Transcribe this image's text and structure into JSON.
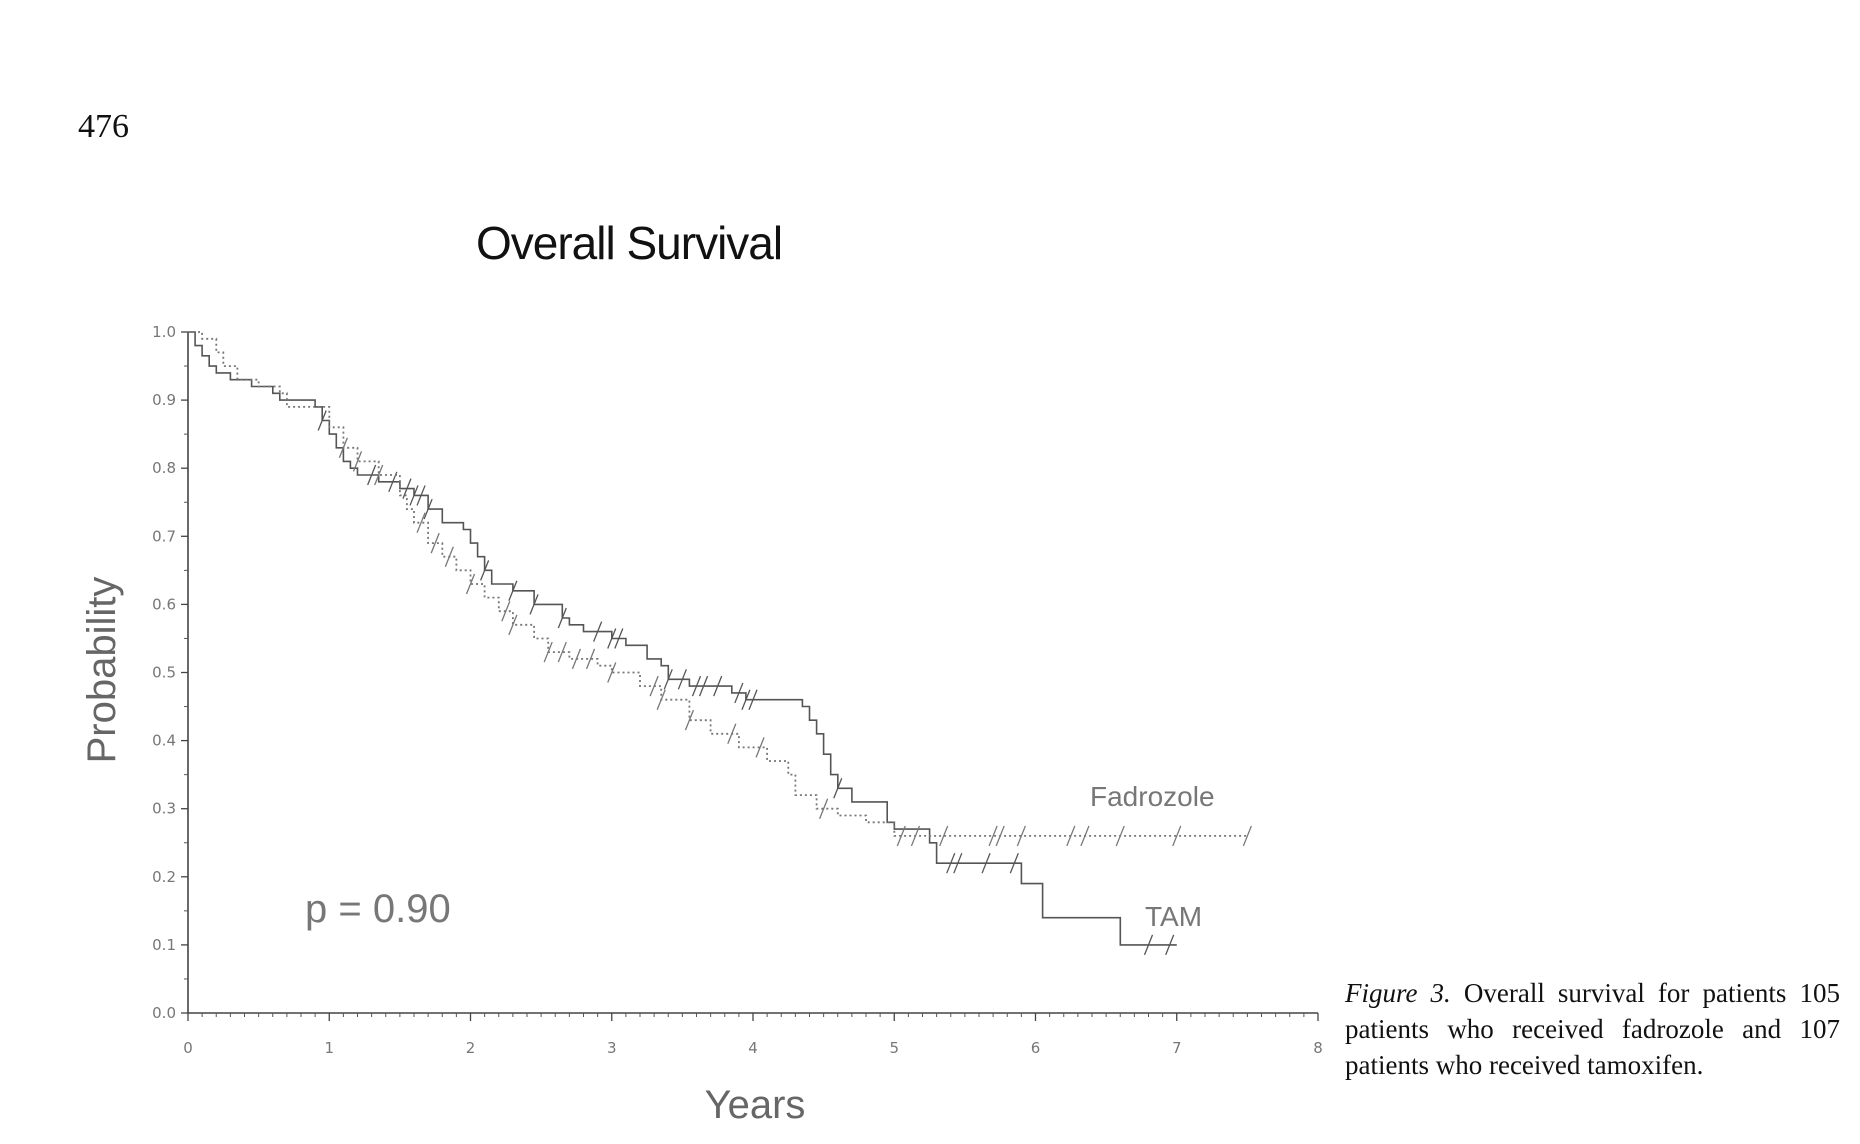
{
  "page": {
    "number": "476"
  },
  "figure": {
    "label": "Figure 3.",
    "caption": "Overall survival for patients 105 patients who received fadrozole and 107 patients who received tamoxifen."
  },
  "chart_data": {
    "type": "line",
    "title": "Overall Survival",
    "xlabel": "Years",
    "ylabel": "Probability",
    "xlim": [
      0,
      8
    ],
    "ylim": [
      0,
      1.0
    ],
    "x_ticks": [
      "0",
      "1",
      "2",
      "3",
      "4",
      "5",
      "6",
      "7",
      "8"
    ],
    "y_ticks": [
      "0.0",
      "0.1",
      "0.2",
      "0.3",
      "0.4",
      "0.5",
      "0.6",
      "0.7",
      "0.8",
      "0.9",
      "1.0"
    ],
    "grid": false,
    "annotations": {
      "pvalue": "p = 0.90"
    },
    "series": [
      {
        "name": "TAM",
        "style": "solid",
        "color": "#555555",
        "step_points": [
          [
            0,
            1.0
          ],
          [
            0.05,
            0.98
          ],
          [
            0.1,
            0.965
          ],
          [
            0.15,
            0.95
          ],
          [
            0.2,
            0.94
          ],
          [
            0.3,
            0.93
          ],
          [
            0.45,
            0.92
          ],
          [
            0.6,
            0.91
          ],
          [
            0.65,
            0.9
          ],
          [
            0.9,
            0.89
          ],
          [
            0.95,
            0.87
          ],
          [
            1.0,
            0.85
          ],
          [
            1.05,
            0.83
          ],
          [
            1.1,
            0.81
          ],
          [
            1.15,
            0.8
          ],
          [
            1.2,
            0.79
          ],
          [
            1.35,
            0.78
          ],
          [
            1.5,
            0.77
          ],
          [
            1.6,
            0.76
          ],
          [
            1.7,
            0.74
          ],
          [
            1.8,
            0.72
          ],
          [
            1.95,
            0.71
          ],
          [
            2.0,
            0.69
          ],
          [
            2.05,
            0.67
          ],
          [
            2.1,
            0.65
          ],
          [
            2.15,
            0.63
          ],
          [
            2.3,
            0.62
          ],
          [
            2.45,
            0.6
          ],
          [
            2.65,
            0.58
          ],
          [
            2.7,
            0.57
          ],
          [
            2.8,
            0.56
          ],
          [
            3.0,
            0.55
          ],
          [
            3.1,
            0.54
          ],
          [
            3.25,
            0.52
          ],
          [
            3.35,
            0.51
          ],
          [
            3.4,
            0.49
          ],
          [
            3.55,
            0.48
          ],
          [
            3.85,
            0.47
          ],
          [
            3.95,
            0.46
          ],
          [
            4.35,
            0.45
          ],
          [
            4.4,
            0.43
          ],
          [
            4.45,
            0.41
          ],
          [
            4.5,
            0.38
          ],
          [
            4.55,
            0.35
          ],
          [
            4.6,
            0.33
          ],
          [
            4.7,
            0.31
          ],
          [
            4.95,
            0.28
          ],
          [
            5.0,
            0.27
          ],
          [
            5.25,
            0.25
          ],
          [
            5.3,
            0.22
          ],
          [
            5.9,
            0.19
          ],
          [
            6.05,
            0.14
          ],
          [
            6.6,
            0.1
          ],
          [
            7.0,
            0.1
          ]
        ],
        "censor_x": [
          0.95,
          1.3,
          1.45,
          1.55,
          1.6,
          1.65,
          1.7,
          2.1,
          2.3,
          2.45,
          2.65,
          2.9,
          3.0,
          3.05,
          3.4,
          3.5,
          3.6,
          3.65,
          3.75,
          3.9,
          3.95,
          4.0,
          4.6,
          5.4,
          5.45,
          5.65,
          5.85,
          6.8,
          6.95
        ]
      },
      {
        "name": "Fadrozole",
        "style": "dotted",
        "color": "#777777",
        "step_points": [
          [
            0,
            1.0
          ],
          [
            0.1,
            0.99
          ],
          [
            0.2,
            0.97
          ],
          [
            0.25,
            0.95
          ],
          [
            0.35,
            0.93
          ],
          [
            0.5,
            0.92
          ],
          [
            0.65,
            0.91
          ],
          [
            0.7,
            0.89
          ],
          [
            0.9,
            0.89
          ],
          [
            1.0,
            0.86
          ],
          [
            1.1,
            0.83
          ],
          [
            1.2,
            0.81
          ],
          [
            1.35,
            0.79
          ],
          [
            1.5,
            0.76
          ],
          [
            1.55,
            0.74
          ],
          [
            1.6,
            0.72
          ],
          [
            1.7,
            0.69
          ],
          [
            1.8,
            0.67
          ],
          [
            1.9,
            0.65
          ],
          [
            2.0,
            0.63
          ],
          [
            2.1,
            0.61
          ],
          [
            2.2,
            0.59
          ],
          [
            2.3,
            0.57
          ],
          [
            2.45,
            0.55
          ],
          [
            2.55,
            0.53
          ],
          [
            2.7,
            0.52
          ],
          [
            2.9,
            0.51
          ],
          [
            3.0,
            0.5
          ],
          [
            3.2,
            0.48
          ],
          [
            3.35,
            0.46
          ],
          [
            3.55,
            0.43
          ],
          [
            3.7,
            0.41
          ],
          [
            3.9,
            0.39
          ],
          [
            4.1,
            0.37
          ],
          [
            4.25,
            0.35
          ],
          [
            4.3,
            0.32
          ],
          [
            4.45,
            0.3
          ],
          [
            4.6,
            0.29
          ],
          [
            4.8,
            0.28
          ],
          [
            5.0,
            0.26
          ],
          [
            7.5,
            0.26
          ]
        ],
        "censor_x": [
          1.1,
          1.2,
          1.35,
          1.65,
          1.75,
          1.85,
          2.0,
          2.25,
          2.3,
          2.55,
          2.65,
          2.75,
          2.85,
          3.0,
          3.3,
          3.35,
          3.55,
          3.85,
          4.05,
          4.5,
          5.05,
          5.15,
          5.35,
          5.7,
          5.75,
          5.9,
          6.25,
          6.35,
          6.6,
          7.0,
          7.5
        ]
      }
    ]
  }
}
